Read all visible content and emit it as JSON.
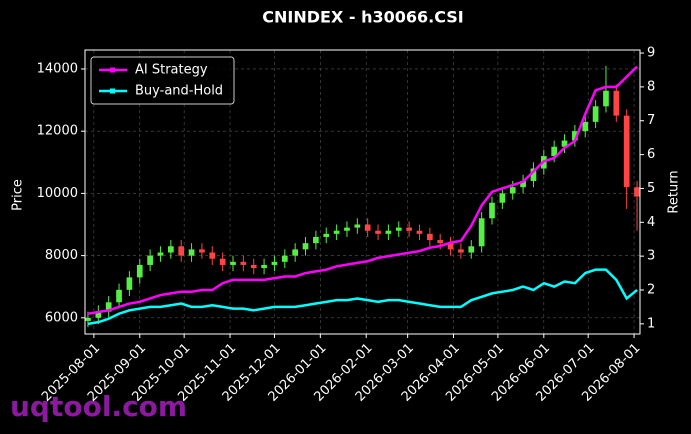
{
  "chart_data": {
    "type": "candlestick",
    "title": "CNINDEX - h30066.CSI",
    "ylabel": "Price",
    "y2label": "Return",
    "watermark": "uqtool.com",
    "x": [
      "2025-07-28",
      "2025-08-04",
      "2025-08-11",
      "2025-08-18",
      "2025-08-25",
      "2025-09-01",
      "2025-09-08",
      "2025-09-15",
      "2025-09-22",
      "2025-09-29",
      "2025-10-06",
      "2025-10-13",
      "2025-10-20",
      "2025-10-27",
      "2025-11-03",
      "2025-11-10",
      "2025-11-17",
      "2025-11-24",
      "2025-12-01",
      "2025-12-08",
      "2025-12-15",
      "2025-12-22",
      "2025-12-29",
      "2026-01-05",
      "2026-01-12",
      "2026-01-19",
      "2026-01-26",
      "2026-02-02",
      "2026-02-09",
      "2026-02-16",
      "2026-02-23",
      "2026-03-02",
      "2026-03-09",
      "2026-03-16",
      "2026-03-23",
      "2026-03-30",
      "2026-04-06",
      "2026-04-13",
      "2026-04-20",
      "2026-04-27",
      "2026-05-04",
      "2026-05-11",
      "2026-05-18",
      "2026-05-25",
      "2026-06-01",
      "2026-06-08",
      "2026-06-15",
      "2026-06-22",
      "2026-06-29",
      "2026-07-06",
      "2026-07-13",
      "2026-07-20",
      "2026-07-27",
      "2026-08-03"
    ],
    "open": [
      5900,
      6000,
      6200,
      6500,
      6900,
      7300,
      7700,
      8000,
      8100,
      8300,
      8000,
      8200,
      8100,
      7900,
      7700,
      7800,
      7700,
      7600,
      7700,
      7800,
      8000,
      8200,
      8400,
      8600,
      8700,
      8800,
      8900,
      9000,
      8800,
      8700,
      8800,
      8900,
      8800,
      8700,
      8500,
      8400,
      8200,
      8100,
      8300,
      9200,
      9700,
      10000,
      10200,
      10400,
      10800,
      11200,
      11500,
      11700,
      12000,
      12300,
      12800,
      13300,
      12500,
      10200
    ],
    "high": [
      6200,
      6400,
      6700,
      7100,
      7500,
      7900,
      8200,
      8300,
      8500,
      8500,
      8400,
      8400,
      8300,
      8100,
      8000,
      8000,
      7900,
      7900,
      8000,
      8200,
      8400,
      8600,
      8800,
      8900,
      9000,
      9100,
      9200,
      9200,
      9000,
      9000,
      9100,
      9100,
      9000,
      8900,
      8700,
      8600,
      8400,
      8500,
      9400,
      9900,
      10200,
      10400,
      10600,
      11000,
      11400,
      11700,
      11900,
      12200,
      12500,
      13000,
      14100,
      13500,
      12700,
      10400
    ],
    "low": [
      5700,
      5800,
      6000,
      6300,
      6700,
      7100,
      7500,
      7800,
      7900,
      7800,
      7800,
      7900,
      7700,
      7500,
      7500,
      7500,
      7400,
      7400,
      7500,
      7600,
      7800,
      8000,
      8200,
      8400,
      8500,
      8600,
      8700,
      8600,
      8500,
      8500,
      8600,
      8600,
      8500,
      8300,
      8200,
      8000,
      7900,
      7900,
      8100,
      9000,
      9500,
      9800,
      10000,
      10200,
      10600,
      11000,
      11300,
      11500,
      11800,
      12100,
      12600,
      12300,
      9500,
      8800
    ],
    "close": [
      6000,
      6200,
      6500,
      6900,
      7300,
      7700,
      8000,
      8100,
      8300,
      8000,
      8200,
      8100,
      7900,
      7700,
      7800,
      7700,
      7600,
      7700,
      7800,
      8000,
      8200,
      8400,
      8600,
      8700,
      8800,
      8900,
      9000,
      8800,
      8700,
      8800,
      8900,
      8800,
      8700,
      8500,
      8400,
      8200,
      8100,
      8300,
      9200,
      9700,
      10000,
      10200,
      10400,
      10800,
      11200,
      11500,
      11700,
      12000,
      12300,
      12800,
      13300,
      12500,
      10200,
      9900
    ],
    "up_color": "#55ee44",
    "down_color": "#ff4444",
    "series": [
      {
        "name": "AI Strategy",
        "color": "#ff00ff",
        "axis": "y2",
        "values": [
          1.3,
          1.35,
          1.4,
          1.5,
          1.6,
          1.65,
          1.75,
          1.85,
          1.9,
          1.95,
          1.95,
          2.0,
          2.0,
          2.2,
          2.3,
          2.3,
          2.3,
          2.3,
          2.35,
          2.4,
          2.4,
          2.5,
          2.55,
          2.6,
          2.7,
          2.75,
          2.8,
          2.85,
          2.95,
          3.0,
          3.05,
          3.1,
          3.15,
          3.25,
          3.3,
          3.4,
          3.45,
          3.9,
          4.5,
          4.9,
          5.0,
          5.1,
          5.2,
          5.5,
          5.8,
          5.9,
          6.2,
          6.4,
          7.2,
          7.9,
          8.0,
          8.0,
          8.3,
          8.6
        ]
      },
      {
        "name": "Buy-and-Hold",
        "color": "#00ffff",
        "axis": "y2",
        "values": [
          1.0,
          1.05,
          1.15,
          1.3,
          1.4,
          1.45,
          1.5,
          1.5,
          1.55,
          1.6,
          1.5,
          1.5,
          1.55,
          1.5,
          1.45,
          1.45,
          1.4,
          1.45,
          1.5,
          1.5,
          1.5,
          1.55,
          1.6,
          1.65,
          1.7,
          1.7,
          1.75,
          1.7,
          1.65,
          1.7,
          1.7,
          1.65,
          1.6,
          1.55,
          1.5,
          1.5,
          1.5,
          1.7,
          1.8,
          1.9,
          1.95,
          2.0,
          2.1,
          2.0,
          2.2,
          2.1,
          2.25,
          2.2,
          2.5,
          2.6,
          2.6,
          2.3,
          1.75,
          2.0
        ]
      }
    ],
    "xlim": [
      "2025-07-26",
      "2026-08-05"
    ],
    "xticks": [
      "2025-08-01",
      "2025-09-01",
      "2025-10-01",
      "2025-11-01",
      "2025-12-01",
      "2026-01-01",
      "2026-02-01",
      "2026-03-01",
      "2026-04-01",
      "2026-05-01",
      "2026-06-01",
      "2026-07-01",
      "2026-08-01"
    ],
    "ylim": [
      5480,
      14610
    ],
    "yticks": [
      6000,
      8000,
      10000,
      12000,
      14000
    ],
    "y2lim": [
      0.7,
      9.09
    ],
    "y2ticks": [
      1,
      2,
      3,
      4,
      5,
      6,
      7,
      8,
      9
    ],
    "grid": true,
    "legend": "upper left"
  }
}
